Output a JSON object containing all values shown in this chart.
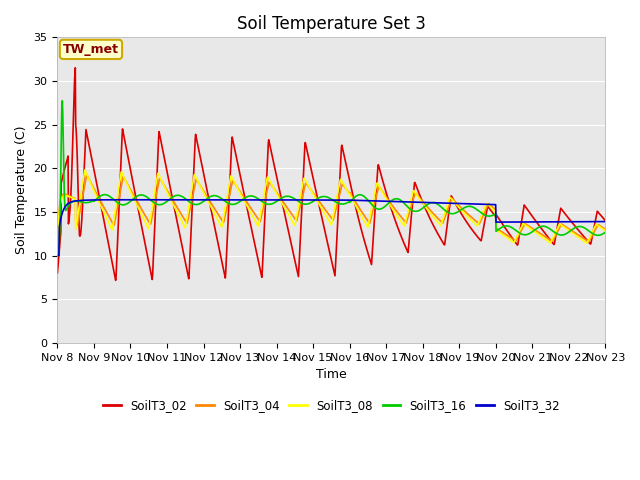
{
  "title": "Soil Temperature Set 3",
  "xlabel": "Time",
  "ylabel": "Soil Temperature (C)",
  "ylim": [
    0,
    35
  ],
  "yticks": [
    0,
    5,
    10,
    15,
    20,
    25,
    30,
    35
  ],
  "x_labels": [
    "Nov 8",
    "Nov 9",
    "Nov 10",
    "Nov 11",
    "Nov 12",
    "Nov 13",
    "Nov 14",
    "Nov 15",
    "Nov 16",
    "Nov 17",
    "Nov 18",
    "Nov 19",
    "Nov 20",
    "Nov 21",
    "Nov 22",
    "Nov 23"
  ],
  "annotation_text": "TW_met",
  "annotation_facecolor": "#ffffcc",
  "annotation_edgecolor": "#ccaa00",
  "annotation_textcolor": "#880000",
  "bg_color": "#e8e8e8",
  "colors": {
    "SoilT3_02": "#dd0000",
    "SoilT3_04": "#ff8800",
    "SoilT3_08": "#ffff00",
    "SoilT3_16": "#00cc00",
    "SoilT3_32": "#0000cc"
  },
  "line_width": 1.2,
  "title_fontsize": 12,
  "axis_label_fontsize": 9,
  "tick_fontsize": 8
}
